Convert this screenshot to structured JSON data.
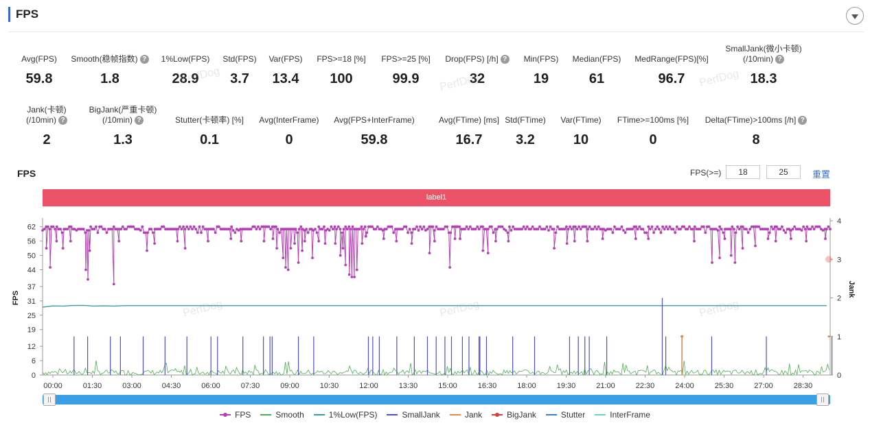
{
  "header": {
    "title": "FPS"
  },
  "metrics_row1": [
    {
      "label": "Avg(FPS)",
      "value": "59.8",
      "help": false
    },
    {
      "label": "Smooth(稳帧指数)",
      "value": "1.8",
      "help": true
    },
    {
      "label": "1%Low(FPS)",
      "value": "28.9",
      "help": false
    },
    {
      "label": "Std(FPS)",
      "value": "3.7",
      "help": false
    },
    {
      "label": "Var(FPS)",
      "value": "13.4",
      "help": false
    },
    {
      "label": "FPS>=18 [%]",
      "value": "100",
      "help": false
    },
    {
      "label": "FPS>=25 [%]",
      "value": "99.9",
      "help": false
    },
    {
      "label": "Drop(FPS) [/h]",
      "value": "32",
      "help": true
    },
    {
      "label": "Min(FPS)",
      "value": "19",
      "help": false
    },
    {
      "label": "Median(FPS)",
      "value": "61",
      "help": false
    },
    {
      "label": "MedRange(FPS)[%]",
      "value": "96.7",
      "help": false
    },
    {
      "label": "SmallJank(微小卡顿)",
      "label2": "(/10min)",
      "value": "18.3",
      "help": true
    }
  ],
  "metrics_row2": [
    {
      "label": "Jank(卡顿)",
      "label2": "(/10min)",
      "value": "2",
      "help": true
    },
    {
      "label": "BigJank(严重卡顿)",
      "label2": "(/10min)",
      "value": "1.3",
      "help": true
    },
    {
      "label": "Stutter(卡顿率) [%]",
      "value": "0.1",
      "help": false
    },
    {
      "label": "Avg(InterFrame)",
      "value": "0",
      "help": false
    },
    {
      "label": "Avg(FPS+InterFrame)",
      "value": "59.8",
      "help": false
    },
    {
      "label": "Avg(FTime) [ms]",
      "value": "16.7",
      "help": false
    },
    {
      "label": "Std(FTime)",
      "value": "3.2",
      "help": false
    },
    {
      "label": "Var(FTime)",
      "value": "10",
      "help": false
    },
    {
      "label": "FTime>=100ms [%]",
      "value": "0",
      "help": false
    },
    {
      "label": "Delta(FTime)>100ms [/h]",
      "value": "8",
      "help": true
    }
  ],
  "watermark": "PerfDog",
  "chart_section": {
    "title": "FPS",
    "threshold_label": "FPS(>=)",
    "threshold_low": "18",
    "threshold_high": "25",
    "reset_label": "重置",
    "band_label": "label1"
  },
  "chart_data": {
    "type": "line",
    "y_left_label": "FPS",
    "y_left_ticks": [
      0,
      6,
      12,
      19,
      25,
      31,
      37,
      44,
      50,
      56,
      62
    ],
    "y_right_label": "Jank",
    "y_right_ticks": [
      0,
      1,
      2,
      3,
      4
    ],
    "x_ticks": [
      "00:00",
      "01:30",
      "03:00",
      "04:30",
      "06:00",
      "07:30",
      "09:00",
      "10:30",
      "12:00",
      "13:30",
      "15:00",
      "16:30",
      "18:00",
      "19:30",
      "21:00",
      "22:30",
      "24:00",
      "25:30",
      "27:00",
      "28:30"
    ],
    "x_range_sec": [
      0,
      1800
    ],
    "fps_dips": [
      {
        "t": 15,
        "v": 53
      },
      {
        "t": 30,
        "v": 45
      },
      {
        "t": 55,
        "v": 56
      },
      {
        "t": 80,
        "v": 53
      },
      {
        "t": 110,
        "v": 56
      },
      {
        "t": 170,
        "v": 44
      },
      {
        "t": 178,
        "v": 40
      },
      {
        "t": 185,
        "v": 52
      },
      {
        "t": 280,
        "v": 38
      },
      {
        "t": 300,
        "v": 56
      },
      {
        "t": 410,
        "v": 52
      },
      {
        "t": 440,
        "v": 55
      },
      {
        "t": 530,
        "v": 56
      },
      {
        "t": 560,
        "v": 53
      },
      {
        "t": 650,
        "v": 56
      },
      {
        "t": 740,
        "v": 57
      },
      {
        "t": 780,
        "v": 56
      },
      {
        "t": 870,
        "v": 56
      },
      {
        "t": 905,
        "v": 57
      },
      {
        "t": 920,
        "v": 53
      },
      {
        "t": 945,
        "v": 49
      },
      {
        "t": 955,
        "v": 45
      },
      {
        "t": 965,
        "v": 44
      },
      {
        "t": 975,
        "v": 53
      },
      {
        "t": 990,
        "v": 55
      },
      {
        "t": 1005,
        "v": 47
      },
      {
        "t": 1020,
        "v": 52
      },
      {
        "t": 1030,
        "v": 56
      },
      {
        "t": 1060,
        "v": 49
      },
      {
        "t": 1085,
        "v": 56
      },
      {
        "t": 1110,
        "v": 55
      },
      {
        "t": 1150,
        "v": 55
      },
      {
        "t": 1170,
        "v": 50
      },
      {
        "t": 1180,
        "v": 53
      },
      {
        "t": 1190,
        "v": 46
      },
      {
        "t": 1205,
        "v": 42
      },
      {
        "t": 1215,
        "v": 41
      },
      {
        "t": 1225,
        "v": 41
      },
      {
        "t": 1235,
        "v": 44
      },
      {
        "t": 1255,
        "v": 55
      },
      {
        "t": 1270,
        "v": 58
      },
      {
        "t": 1340,
        "v": 57
      },
      {
        "t": 1390,
        "v": 56
      },
      {
        "t": 1450,
        "v": 55
      },
      {
        "t": 1520,
        "v": 51
      },
      {
        "t": 1540,
        "v": 56
      },
      {
        "t": 1600,
        "v": 45
      },
      {
        "t": 1620,
        "v": 57
      },
      {
        "t": 1640,
        "v": 57
      },
      {
        "t": 1730,
        "v": 52
      },
      {
        "t": 1750,
        "v": 51
      },
      {
        "t": 1780,
        "v": 56
      },
      {
        "t": 1830,
        "v": 56
      },
      {
        "t": 2010,
        "v": 53
      },
      {
        "t": 2060,
        "v": 55
      },
      {
        "t": 2090,
        "v": 56
      },
      {
        "t": 2140,
        "v": 56
      },
      {
        "t": 2200,
        "v": 57
      },
      {
        "t": 2330,
        "v": 57
      },
      {
        "t": 2380,
        "v": 57
      },
      {
        "t": 2560,
        "v": 56
      },
      {
        "t": 2630,
        "v": 47
      },
      {
        "t": 2660,
        "v": 49
      },
      {
        "t": 2680,
        "v": 57
      },
      {
        "t": 2705,
        "v": 50
      },
      {
        "t": 2720,
        "v": 47
      },
      {
        "t": 2750,
        "v": 53
      },
      {
        "t": 2800,
        "v": 54
      },
      {
        "t": 2850,
        "v": 57
      },
      {
        "t": 2880,
        "v": 56
      },
      {
        "t": 2940,
        "v": 57
      },
      {
        "t": 3000,
        "v": 56
      },
      {
        "t": 3075,
        "v": 57
      }
    ],
    "fps_baseline": 61,
    "low1_start": 28,
    "low1_level": 29,
    "smalljank_events_sec": [
      72,
      103,
      155,
      178,
      230,
      280,
      330,
      385,
      400,
      458,
      505,
      520,
      525,
      585,
      620,
      745,
      755,
      770,
      810,
      850,
      880,
      900,
      920,
      935,
      960,
      975,
      998,
      1000,
      1015,
      1075,
      1125,
      1205,
      1225,
      1240,
      1250,
      1290,
      1425,
      1530,
      1655,
      1805,
      1925,
      1958,
      2007,
      2010,
      2020,
      2029,
      2035,
      2059,
      2064,
      2070,
      2094,
      2151
    ],
    "smalljank_tall_sec": [
      1417,
      1902
    ],
    "jank_events_sec": [
      1462,
      1948
    ],
    "bigjank_events_sec": [
      1902
    ],
    "colors": {
      "fps": "#b53fb5",
      "smooth": "#48b04c",
      "low1": "#3a9e9e",
      "smalljank": "#4c4fc9",
      "jank": "#e8874a",
      "bigjank": "#e03a3a",
      "stutter": "#3a7fd0",
      "interframe": "#6fcfd0"
    }
  },
  "legend": [
    {
      "name": "FPS",
      "color": "#b53fb5",
      "dot": true
    },
    {
      "name": "Smooth",
      "color": "#48b04c",
      "dot": false
    },
    {
      "name": "1%Low(FPS)",
      "color": "#3a9e9e",
      "dot": false
    },
    {
      "name": "SmallJank",
      "color": "#4c4fc9",
      "dot": false
    },
    {
      "name": "Jank",
      "color": "#e8874a",
      "dot": false
    },
    {
      "name": "BigJank",
      "color": "#e03a3a",
      "dot": true
    },
    {
      "name": "Stutter",
      "color": "#3a7fd0",
      "dot": false
    },
    {
      "name": "InterFrame",
      "color": "#6fcfd0",
      "dot": false
    }
  ]
}
